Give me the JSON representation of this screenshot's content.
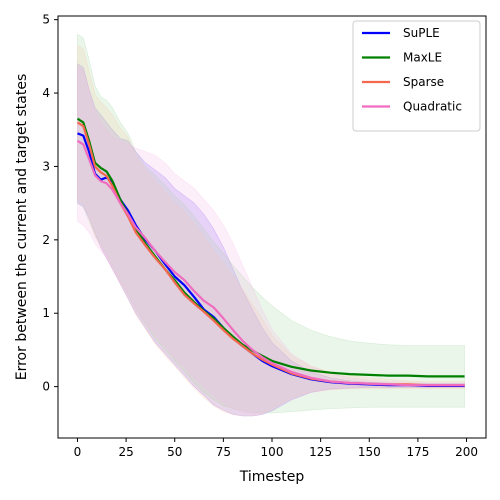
{
  "chart_data": {
    "type": "line",
    "xlabel": "Timestep",
    "ylabel": "Error between the current and target states",
    "xlim": [
      -10,
      210
    ],
    "ylim": [
      -0.7,
      5.05
    ],
    "xticks": [
      0,
      25,
      50,
      75,
      100,
      125,
      150,
      175,
      200
    ],
    "yticks": [
      0,
      1,
      2,
      3,
      4,
      5
    ],
    "grid": false,
    "legend_position": "top-right",
    "series": [
      {
        "name": "SuPLE",
        "color": "#0000ff",
        "band_color": "#8a5cf6",
        "x": [
          0,
          3,
          6,
          9,
          12,
          15,
          18,
          22,
          26,
          30,
          35,
          40,
          45,
          50,
          55,
          60,
          65,
          70,
          75,
          80,
          85,
          90,
          95,
          100,
          110,
          120,
          130,
          140,
          150,
          160,
          170,
          180,
          190,
          199
        ],
        "y": [
          3.45,
          3.42,
          3.2,
          2.9,
          2.82,
          2.85,
          2.78,
          2.55,
          2.4,
          2.2,
          2.0,
          1.85,
          1.67,
          1.5,
          1.38,
          1.22,
          1.05,
          0.95,
          0.8,
          0.66,
          0.55,
          0.45,
          0.35,
          0.28,
          0.17,
          0.1,
          0.06,
          0.04,
          0.03,
          0.02,
          0.02,
          0.01,
          0.01,
          0.01
        ],
        "upper": [
          4.4,
          4.35,
          4.05,
          3.8,
          3.7,
          3.6,
          3.5,
          3.38,
          3.35,
          3.2,
          3.05,
          2.95,
          2.85,
          2.7,
          2.6,
          2.5,
          2.35,
          2.15,
          1.9,
          1.6,
          1.3,
          1.05,
          0.8,
          0.6,
          0.35,
          0.2,
          0.12,
          0.08,
          0.06,
          0.05,
          0.04,
          0.04,
          0.04,
          0.04
        ],
        "lower": [
          2.5,
          2.45,
          2.3,
          2.1,
          1.9,
          1.75,
          1.6,
          1.4,
          1.2,
          1.0,
          0.8,
          0.6,
          0.45,
          0.3,
          0.15,
          0.0,
          -0.12,
          -0.25,
          -0.32,
          -0.38,
          -0.4,
          -0.4,
          -0.38,
          -0.33,
          -0.18,
          -0.08,
          -0.03,
          -0.02,
          -0.01,
          -0.01,
          -0.01,
          -0.01,
          -0.01,
          -0.01
        ]
      },
      {
        "name": "MaxLE",
        "color": "#008000",
        "band_color": "#9fd49f",
        "x": [
          0,
          3,
          6,
          9,
          12,
          15,
          18,
          22,
          26,
          30,
          35,
          40,
          45,
          50,
          55,
          60,
          65,
          70,
          75,
          80,
          85,
          90,
          95,
          100,
          110,
          120,
          130,
          140,
          150,
          160,
          170,
          180,
          190,
          199
        ],
        "y": [
          3.65,
          3.6,
          3.35,
          3.05,
          2.98,
          2.93,
          2.8,
          2.55,
          2.35,
          2.15,
          1.95,
          1.77,
          1.6,
          1.45,
          1.28,
          1.15,
          1.03,
          0.93,
          0.8,
          0.68,
          0.57,
          0.49,
          0.42,
          0.35,
          0.27,
          0.22,
          0.19,
          0.17,
          0.16,
          0.15,
          0.15,
          0.14,
          0.14,
          0.14
        ],
        "upper": [
          4.8,
          4.75,
          4.45,
          4.1,
          3.95,
          3.9,
          3.8,
          3.6,
          3.45,
          3.2,
          3.0,
          2.88,
          2.75,
          2.6,
          2.48,
          2.32,
          2.15,
          1.97,
          1.82,
          1.65,
          1.5,
          1.35,
          1.22,
          1.1,
          0.9,
          0.77,
          0.68,
          0.62,
          0.59,
          0.57,
          0.56,
          0.56,
          0.56,
          0.56
        ],
        "lower": [
          2.5,
          2.45,
          2.25,
          2.05,
          1.95,
          1.8,
          1.65,
          1.45,
          1.25,
          1.05,
          0.85,
          0.65,
          0.5,
          0.35,
          0.2,
          0.05,
          -0.08,
          -0.18,
          -0.26,
          -0.3,
          -0.33,
          -0.35,
          -0.36,
          -0.36,
          -0.34,
          -0.32,
          -0.3,
          -0.29,
          -0.28,
          -0.28,
          -0.28,
          -0.28,
          -0.28,
          -0.28
        ]
      },
      {
        "name": "Sparse",
        "color": "#f4684f",
        "band_color": "#f8c8a8",
        "x": [
          0,
          3,
          6,
          9,
          12,
          15,
          18,
          22,
          26,
          30,
          35,
          40,
          45,
          50,
          55,
          60,
          65,
          70,
          75,
          80,
          85,
          90,
          95,
          100,
          110,
          120,
          130,
          140,
          150,
          160,
          170,
          180,
          190,
          199
        ],
        "y": [
          3.6,
          3.55,
          3.3,
          3.0,
          2.92,
          2.87,
          2.73,
          2.5,
          2.32,
          2.1,
          1.92,
          1.75,
          1.6,
          1.42,
          1.25,
          1.13,
          1.02,
          0.9,
          0.77,
          0.65,
          0.55,
          0.45,
          0.37,
          0.3,
          0.18,
          0.11,
          0.07,
          0.05,
          0.04,
          0.03,
          0.03,
          0.02,
          0.02,
          0.02
        ],
        "upper": [
          4.65,
          4.6,
          4.3,
          3.98,
          3.88,
          3.8,
          3.7,
          3.52,
          3.4,
          3.15,
          2.95,
          2.8,
          2.65,
          2.5,
          2.38,
          2.22,
          2.05,
          1.85,
          1.68,
          1.5,
          1.32,
          1.12,
          0.92,
          0.7,
          0.42,
          0.28,
          0.2,
          0.15,
          0.12,
          0.1,
          0.08,
          0.07,
          0.07,
          0.07
        ],
        "lower": [
          2.55,
          2.5,
          2.3,
          2.05,
          1.9,
          1.75,
          1.6,
          1.4,
          1.2,
          0.98,
          0.78,
          0.58,
          0.42,
          0.28,
          0.12,
          -0.02,
          -0.15,
          -0.26,
          -0.34,
          -0.38,
          -0.4,
          -0.4,
          -0.37,
          -0.3,
          -0.15,
          -0.07,
          -0.04,
          -0.03,
          -0.03,
          -0.03,
          -0.03,
          -0.03,
          -0.03,
          -0.03
        ]
      },
      {
        "name": "Quadratic",
        "color": "#f06cc0",
        "band_color": "#f7b8e6",
        "x": [
          0,
          3,
          6,
          9,
          12,
          15,
          18,
          22,
          26,
          30,
          35,
          40,
          45,
          50,
          55,
          60,
          65,
          70,
          75,
          80,
          85,
          90,
          95,
          100,
          110,
          120,
          130,
          140,
          150,
          160,
          170,
          180,
          190,
          199
        ],
        "y": [
          3.35,
          3.3,
          3.1,
          2.88,
          2.8,
          2.77,
          2.68,
          2.5,
          2.35,
          2.17,
          2.02,
          1.85,
          1.7,
          1.56,
          1.45,
          1.3,
          1.17,
          1.08,
          0.93,
          0.77,
          0.62,
          0.5,
          0.4,
          0.32,
          0.2,
          0.12,
          0.07,
          0.05,
          0.04,
          0.03,
          0.02,
          0.02,
          0.02,
          0.02
        ],
        "upper": [
          4.35,
          4.3,
          4.05,
          3.75,
          3.6,
          3.5,
          3.4,
          3.35,
          3.3,
          3.25,
          3.2,
          3.15,
          3.05,
          2.9,
          2.8,
          2.7,
          2.55,
          2.4,
          2.2,
          1.95,
          1.65,
          1.35,
          1.05,
          0.78,
          0.45,
          0.28,
          0.18,
          0.12,
          0.09,
          0.07,
          0.06,
          0.05,
          0.05,
          0.05
        ],
        "lower": [
          2.25,
          2.2,
          2.1,
          1.95,
          1.85,
          1.75,
          1.6,
          1.42,
          1.25,
          1.05,
          0.87,
          0.7,
          0.55,
          0.4,
          0.27,
          0.12,
          0.0,
          -0.12,
          -0.22,
          -0.3,
          -0.35,
          -0.37,
          -0.36,
          -0.32,
          -0.18,
          -0.08,
          -0.04,
          -0.02,
          -0.01,
          -0.01,
          -0.01,
          -0.01,
          -0.01,
          -0.01
        ]
      }
    ]
  }
}
